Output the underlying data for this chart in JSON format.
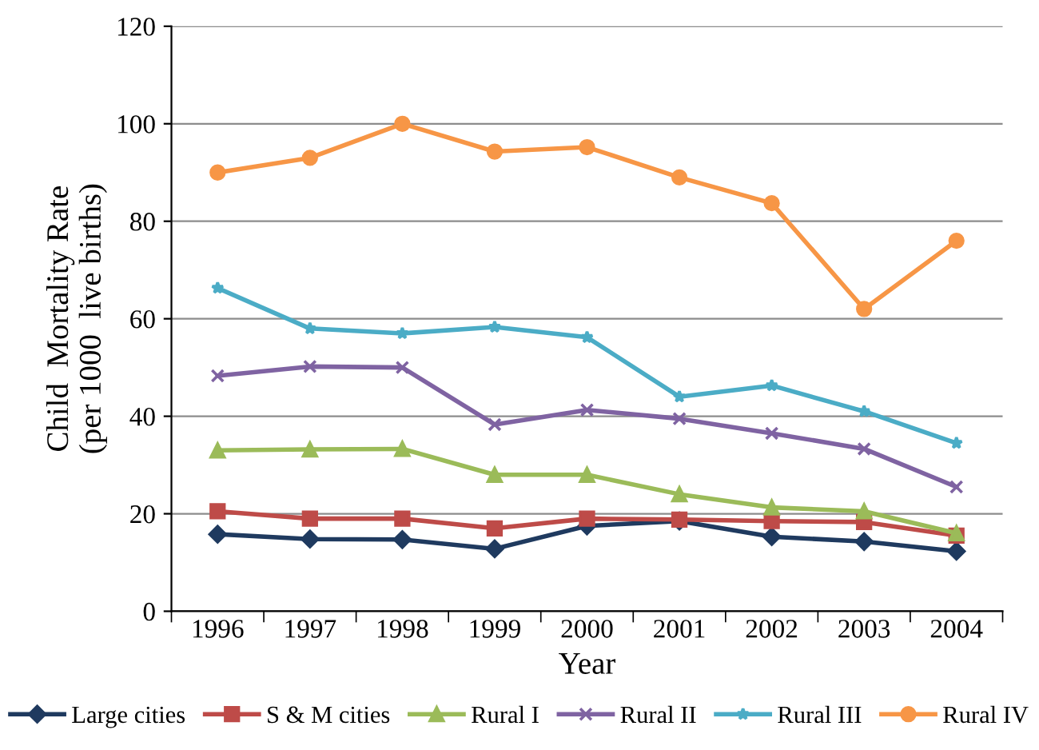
{
  "chart_data": {
    "type": "line",
    "xlabel": "Year",
    "ylabel": "Child  Mortality Rate\n(per 1000  live births)",
    "categories": [
      "1996",
      "1997",
      "1998",
      "1999",
      "2000",
      "2001",
      "2002",
      "2003",
      "2004"
    ],
    "series": [
      {
        "name": "Large cities",
        "color": "#1f3a5f",
        "marker": "diamond",
        "values": [
          15.8,
          14.8,
          14.7,
          12.8,
          17.5,
          18.5,
          15.3,
          14.3,
          12.3
        ]
      },
      {
        "name": "S & M cities",
        "color": "#be4b48",
        "marker": "square",
        "values": [
          20.5,
          19,
          19,
          17,
          19,
          18.8,
          18.5,
          18.3,
          15.5
        ]
      },
      {
        "name": "Rural I",
        "color": "#9bbb59",
        "marker": "triangle",
        "values": [
          33,
          33.2,
          33.3,
          28,
          28,
          24,
          21.3,
          20.5,
          16
        ]
      },
      {
        "name": "Rural II",
        "color": "#7f63a2",
        "marker": "cross",
        "values": [
          48.3,
          50.2,
          50,
          38.3,
          41.3,
          39.5,
          36.5,
          33.3,
          25.5
        ]
      },
      {
        "name": "Rural III",
        "color": "#4bacc6",
        "marker": "star",
        "values": [
          66.3,
          58,
          57,
          58.3,
          56.2,
          44,
          46.3,
          41,
          34.5
        ]
      },
      {
        "name": "Rural IV",
        "color": "#f79646",
        "marker": "circle",
        "values": [
          90,
          93,
          100,
          94.3,
          95.2,
          89,
          83.7,
          62,
          76
        ]
      }
    ],
    "ylim": [
      0,
      120
    ],
    "yticks": [
      0,
      20,
      40,
      60,
      80,
      100,
      120
    ],
    "grid": "y",
    "legend": "bottom"
  }
}
